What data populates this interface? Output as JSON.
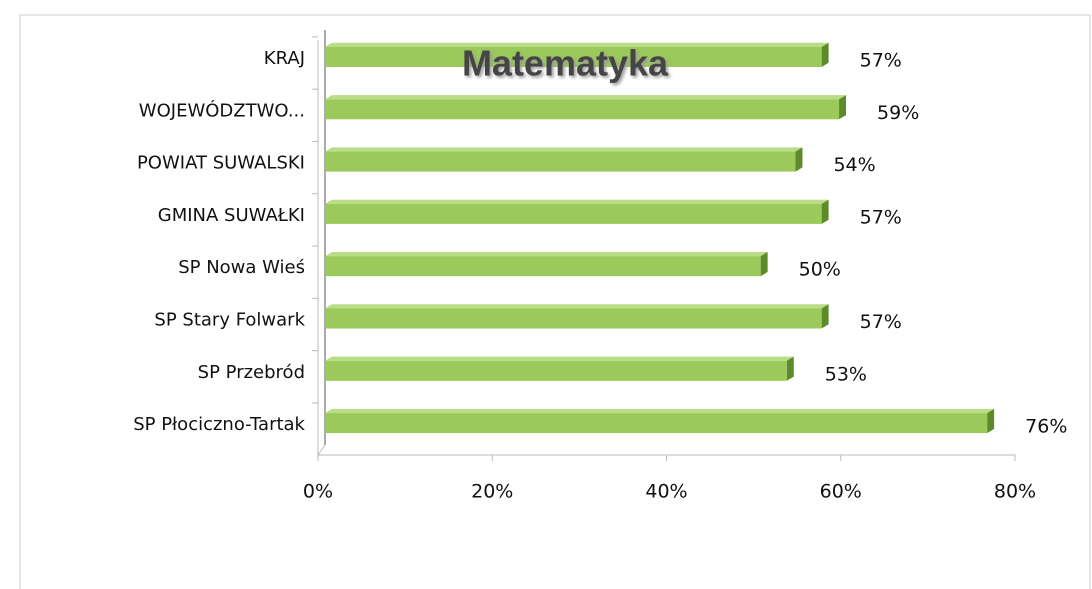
{
  "chart_data": {
    "type": "bar",
    "orientation": "horizontal",
    "title": "Matematyka",
    "categories": [
      "KRAJ",
      "WOJEWÓDZTWO...",
      "POWIAT SUWALSKI",
      "GMINA SUWAŁKI",
      "SP Nowa Wieś",
      "SP Stary Folwark",
      "SP Przebród",
      "SP Płociczno-Tartak"
    ],
    "values": [
      57,
      59,
      54,
      57,
      50,
      57,
      53,
      76
    ],
    "value_labels": [
      "57%",
      "59%",
      "54%",
      "57%",
      "50%",
      "57%",
      "53%",
      "76%"
    ],
    "color": "#9bc95a",
    "xlim": [
      0,
      80
    ],
    "xticks": [
      {
        "value": 0,
        "label": "0%"
      },
      {
        "value": 20,
        "label": "20%"
      },
      {
        "value": 40,
        "label": "40%"
      },
      {
        "value": 60,
        "label": "60%"
      },
      {
        "value": 80,
        "label": "80%"
      }
    ],
    "grid": false
  }
}
